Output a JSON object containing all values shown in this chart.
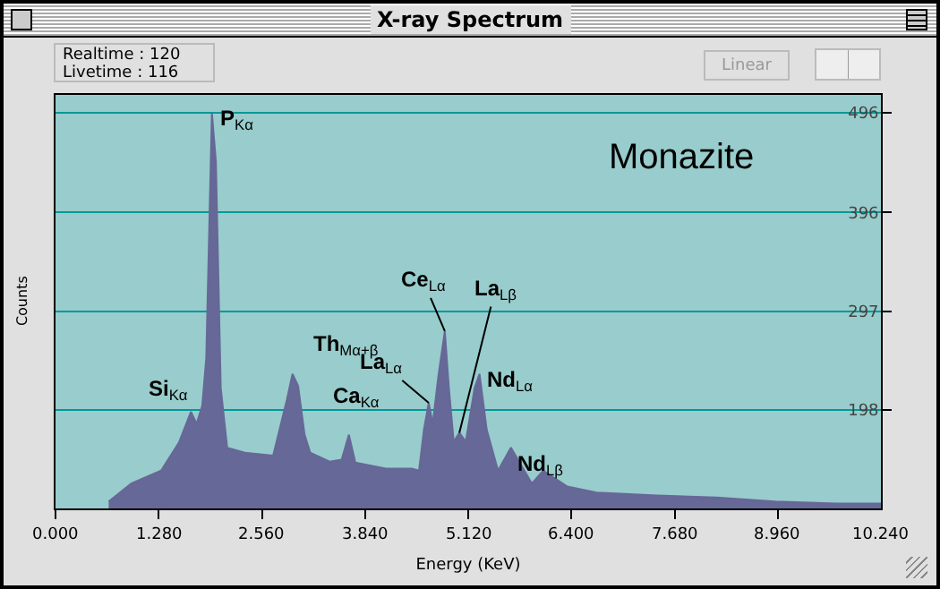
{
  "chart_data": {
    "type": "area",
    "title": "X-ray Spectrum",
    "xlabel": "Energy (KeV)",
    "ylabel": "Counts",
    "x": [
      0.66,
      0.94,
      1.31,
      1.53,
      1.68,
      1.75,
      1.82,
      1.87,
      1.94,
      1.99,
      2.05,
      2.13,
      2.35,
      2.7,
      2.87,
      2.94,
      3.01,
      3.09,
      3.16,
      3.4,
      3.55,
      3.64,
      3.72,
      4.1,
      4.42,
      4.51,
      4.57,
      4.63,
      4.68,
      4.75,
      4.83,
      4.88,
      4.94,
      5.01,
      5.09,
      5.2,
      5.26,
      5.35,
      5.49,
      5.65,
      5.91,
      6.05,
      6.35,
      6.71,
      7.46,
      8.2,
      8.93,
      9.68,
      10.24
    ],
    "values": [
      106,
      124,
      137,
      165,
      196,
      184,
      202,
      250,
      496,
      447,
      220,
      160,
      155,
      152,
      208,
      234,
      222,
      173,
      155,
      146,
      148,
      173,
      145,
      139,
      139,
      137,
      178,
      205,
      184,
      232,
      277,
      220,
      166,
      175,
      166,
      220,
      234,
      178,
      137,
      160,
      124,
      137,
      121,
      115,
      112,
      110,
      106,
      104,
      104
    ],
    "color": "#666897",
    "xlim": [
      0,
      10.24
    ],
    "xticks": [
      {
        "value": 0,
        "label": "0.000"
      },
      {
        "value": 1.28,
        "label": "1.280"
      },
      {
        "value": 2.56,
        "label": "2.560"
      },
      {
        "value": 3.84,
        "label": "3.840"
      },
      {
        "value": 5.12,
        "label": "5.120"
      },
      {
        "value": 6.4,
        "label": "6.400"
      },
      {
        "value": 7.68,
        "label": "7.680"
      },
      {
        "value": 8.96,
        "label": "8.960"
      },
      {
        "value": 10.24,
        "label": "10.240"
      }
    ],
    "ylim": [
      99,
      514
    ],
    "yticks": [
      198,
      297,
      396,
      496
    ],
    "grid": "y",
    "annotations": [
      {
        "text": "P$_{Kα}$",
        "x": 1.94,
        "y": 496
      },
      {
        "text": "Si$_{Kα}$",
        "x": 1.68,
        "y": 196
      },
      {
        "text": "Th$_{Mα+β}$",
        "x": 2.94,
        "y": 234
      },
      {
        "text": "Ca$_{Kα}$",
        "x": 3.64,
        "y": 173
      },
      {
        "text": "La$_{Lα}$",
        "x": 4.63,
        "y": 205
      },
      {
        "text": "Ce$_{Lα}$",
        "x": 4.83,
        "y": 277
      },
      {
        "text": "La$_{Lβ}$",
        "x": 5.01,
        "y": 175
      },
      {
        "text": "Nd$_{Lα}$",
        "x": 5.26,
        "y": 234
      },
      {
        "text": "Nd$_{Lβ}$",
        "x": 5.65,
        "y": 160
      },
      "Monazite",
      "Realtime : 120",
      "Livetime : 116",
      "Linear"
    ]
  }
}
